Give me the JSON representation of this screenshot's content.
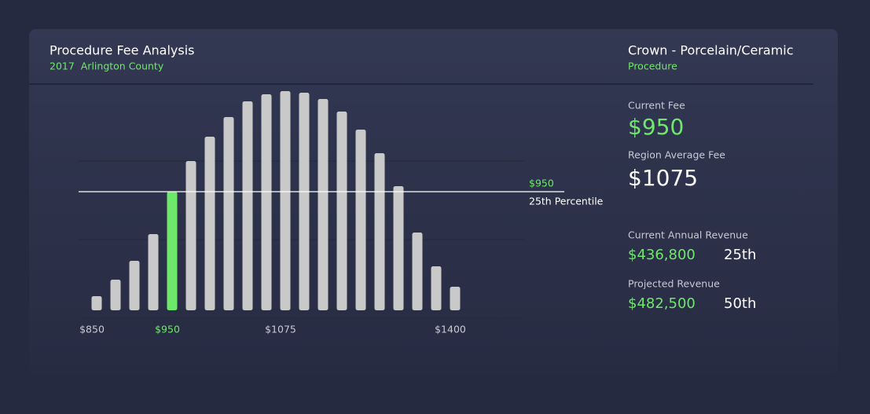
{
  "header": {
    "title": "Procedure Fee Analysis",
    "subtitle": "2017  Arlington County"
  },
  "procedure": {
    "name": "Crown - Porcelain/Ceramic",
    "kind": "Procedure"
  },
  "fees": [
    {
      "label": "Current Fee",
      "value": "$950"
    },
    {
      "label": "Region Average Fee",
      "value": "$1075"
    }
  ],
  "revenue": [
    {
      "label": "Current Annual Revenue",
      "value": "$436,800",
      "percentile": "25th"
    },
    {
      "label": "Projected Revenue",
      "value": "$482,500",
      "percentile": "50th"
    }
  ],
  "chart_data": {
    "type": "bar",
    "categories": [
      "$850",
      null,
      null,
      null,
      "$950",
      null,
      null,
      null,
      null,
      null,
      "$1075",
      null,
      null,
      null,
      null,
      null,
      null,
      null,
      null,
      "$1400"
    ],
    "values": [
      18,
      39,
      63,
      97,
      151,
      190,
      221,
      246,
      266,
      275,
      279,
      277,
      269,
      253,
      230,
      200,
      158,
      99,
      56,
      30
    ],
    "colors": [
      "#c9c9c9",
      "#c9c9c9",
      "#c9c9c9",
      "#c9c9c9",
      "#6ee86a",
      "#c9c9c9",
      "#c9c9c9",
      "#c9c9c9",
      "#c9c9c9",
      "#c9c9c9",
      "#c9c9c9",
      "#c9c9c9",
      "#c9c9c9",
      "#c9c9c9",
      "#c9c9c9",
      "#c9c9c9",
      "#c9c9c9",
      "#c9c9c9",
      "#c9c9c9",
      "#c9c9c9"
    ],
    "ylim": [
      0,
      300
    ],
    "reference_line": {
      "value": 151,
      "label": "$950",
      "note": "25th Percentile"
    }
  }
}
